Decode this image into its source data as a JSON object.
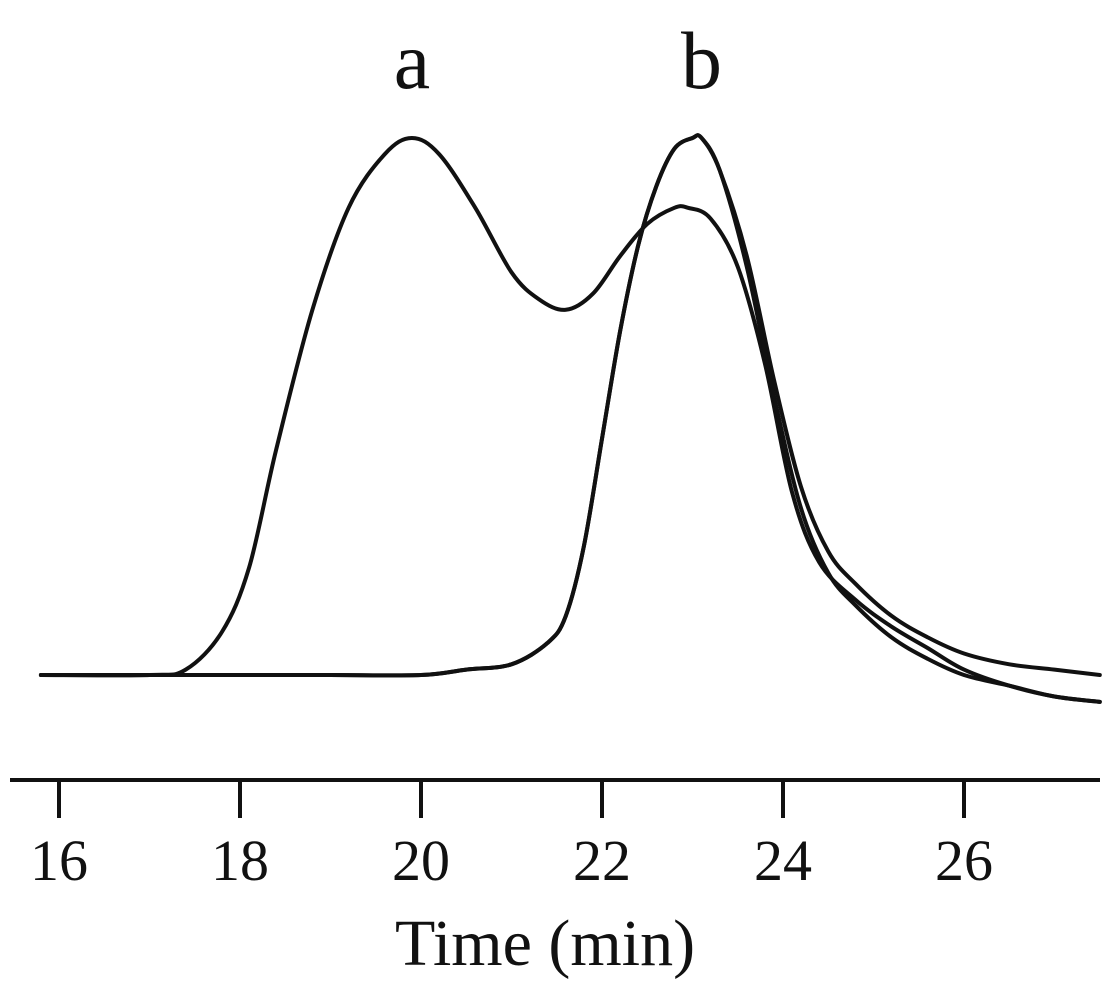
{
  "chart_data": {
    "type": "line",
    "xlabel": "Time (min)",
    "ylabel": "",
    "title": "",
    "xlim": [
      15.6,
      27.7
    ],
    "ylim": [
      -0.07,
      1.02
    ],
    "x_ticks": [
      16,
      18,
      20,
      22,
      24,
      26
    ],
    "x_tick_labels": [
      "16",
      "18",
      "20",
      "22",
      "24",
      "26"
    ],
    "y_ticks_shown": false,
    "grid": false,
    "legend": "none",
    "annotations": [
      {
        "text": "a",
        "x": 19.9
      },
      {
        "text": "b",
        "x": 23.1
      }
    ],
    "series": [
      {
        "x": [
          15.8,
          17.0,
          17.4,
          17.8,
          18.1,
          18.4,
          18.8,
          19.2,
          19.6,
          19.9,
          20.2,
          20.6,
          21.0,
          21.3,
          21.6,
          21.9,
          22.2,
          22.5,
          22.8,
          22.95,
          23.2,
          23.5,
          23.8,
          24.1,
          24.4,
          24.8,
          25.2,
          25.6,
          26.0,
          26.5,
          27.0,
          27.5
        ],
        "y": [
          0.0,
          0.0,
          0.01,
          0.08,
          0.2,
          0.42,
          0.68,
          0.87,
          0.97,
          1.0,
          0.97,
          0.87,
          0.75,
          0.7,
          0.68,
          0.71,
          0.78,
          0.84,
          0.87,
          0.87,
          0.85,
          0.76,
          0.58,
          0.34,
          0.21,
          0.14,
          0.09,
          0.05,
          0.01,
          -0.02,
          -0.04,
          -0.05
        ]
      },
      {
        "x": [
          15.8,
          17.0,
          18.0,
          19.0,
          20.0,
          20.5,
          21.0,
          21.4,
          21.6,
          21.8,
          22.0,
          22.2,
          22.4,
          22.6,
          22.8,
          23.0,
          23.1,
          23.3,
          23.6,
          23.9,
          24.2,
          24.5,
          24.8,
          25.2,
          25.6,
          26.0,
          26.5,
          27.0,
          27.5
        ],
        "y": [
          0.0,
          0.0,
          0.0,
          0.0,
          0.0,
          0.01,
          0.02,
          0.06,
          0.11,
          0.24,
          0.44,
          0.64,
          0.8,
          0.91,
          0.98,
          1.0,
          1.0,
          0.94,
          0.78,
          0.55,
          0.35,
          0.23,
          0.17,
          0.11,
          0.07,
          0.04,
          0.02,
          0.01,
          0.0
        ]
      },
      {
        "x": [
          15.8,
          17.0,
          18.0,
          19.0,
          20.0,
          20.5,
          21.0,
          21.4,
          21.6,
          21.8,
          22.0,
          22.2,
          22.4,
          22.6,
          22.8,
          23.0,
          23.1,
          23.3,
          23.6,
          23.9,
          24.2,
          24.5,
          24.8,
          25.2,
          25.6,
          26.0,
          26.5,
          27.0,
          27.5
        ],
        "y": [
          0.0,
          0.0,
          0.0,
          0.0,
          0.0,
          0.01,
          0.02,
          0.06,
          0.11,
          0.24,
          0.44,
          0.64,
          0.8,
          0.91,
          0.98,
          1.0,
          1.0,
          0.94,
          0.76,
          0.52,
          0.31,
          0.19,
          0.13,
          0.07,
          0.03,
          0.0,
          -0.02,
          -0.04,
          -0.05
        ]
      }
    ]
  },
  "colors": {
    "line": "#111111",
    "axis": "#111111",
    "background": "#ffffff"
  }
}
